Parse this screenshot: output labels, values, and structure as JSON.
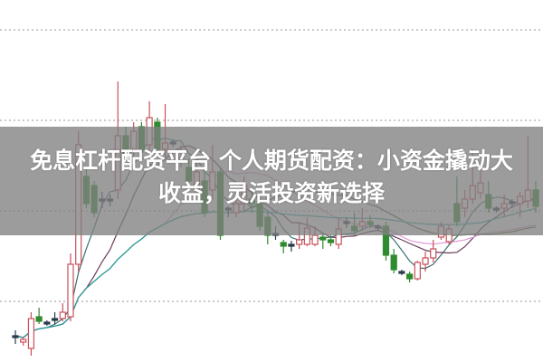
{
  "title": {
    "line1": "免息杠杆配资平台 个人期货配资：小资金撬动大",
    "line2": "收益，灵活投资新选择"
  },
  "colors": {
    "up": "#c8505a",
    "down": "#2e8b2e",
    "doji": "#2a3a4a",
    "grid": "#aaaaaa",
    "banner": "#808080"
  },
  "chart_data": {
    "type": "candlestick",
    "title": "",
    "xlabel": "",
    "ylabel": "",
    "grid": true,
    "ylim": [
      0,
      400
    ],
    "candle_format": [
      "open",
      "close",
      "high",
      "low"
    ],
    "candles": [
      [
        27,
        29,
        35,
        20
      ],
      [
        22,
        25,
        28,
        18
      ],
      [
        15,
        48,
        55,
        7
      ],
      [
        50,
        45,
        60,
        42
      ],
      [
        44,
        43,
        46,
        40
      ],
      [
        46,
        48,
        55,
        42
      ],
      [
        48,
        55,
        65,
        45
      ],
      [
        50,
        108,
        120,
        45
      ],
      [
        108,
        240,
        255,
        100
      ],
      [
        205,
        175,
        215,
        170
      ],
      [
        195,
        165,
        200,
        160
      ],
      [
        178,
        180,
        188,
        170
      ],
      [
        178,
        180,
        185,
        172
      ],
      [
        190,
        250,
        310,
        180
      ],
      [
        250,
        230,
        260,
        225
      ],
      [
        235,
        255,
        265,
        225
      ],
      [
        260,
        235,
        265,
        230
      ],
      [
        240,
        270,
        288,
        232
      ],
      [
        265,
        235,
        270,
        230
      ],
      [
        235,
        242,
        285,
        225
      ],
      [
        243,
        242,
        246,
        238
      ],
      [
        225,
        232,
        240,
        215
      ],
      [
        215,
        200,
        225,
        195
      ],
      [
        190,
        210,
        225,
        185
      ],
      [
        200,
        165,
        210,
        160
      ],
      [
        190,
        210,
        240,
        180
      ],
      [
        210,
        140,
        215,
        135
      ],
      [
        170,
        168,
        172,
        160
      ],
      [
        165,
        175,
        185,
        160
      ],
      [
        175,
        195,
        205,
        165
      ],
      [
        180,
        175,
        190,
        165
      ],
      [
        175,
        150,
        180,
        145
      ],
      [
        160,
        140,
        165,
        130
      ],
      [
        140,
        142,
        150,
        135
      ],
      [
        132,
        128,
        135,
        120
      ],
      [
        130,
        128,
        134,
        122
      ],
      [
        130,
        135,
        155,
        125
      ],
      [
        130,
        148,
        160,
        128
      ],
      [
        130,
        140,
        150,
        128
      ],
      [
        138,
        135,
        142,
        125
      ],
      [
        135,
        132,
        140,
        128
      ],
      [
        130,
        147,
        160,
        125
      ],
      [
        155,
        153,
        160,
        148
      ],
      [
        150,
        145,
        165,
        140
      ],
      [
        150,
        155,
        170,
        145
      ],
      [
        155,
        152,
        162,
        148
      ],
      [
        150,
        148,
        152,
        145
      ],
      [
        150,
        118,
        155,
        112
      ],
      [
        118,
        102,
        125,
        98
      ],
      [
        100,
        98,
        102,
        96
      ],
      [
        97,
        92,
        100,
        88
      ],
      [
        92,
        110,
        112,
        90
      ],
      [
        108,
        115,
        122,
        100
      ],
      [
        115,
        125,
        135,
        110
      ],
      [
        138,
        150,
        155,
        135
      ],
      [
        133,
        147,
        152,
        130
      ],
      [
        175,
        155,
        205,
        150
      ],
      [
        170,
        180,
        190,
        160
      ],
      [
        180,
        195,
        235,
        175
      ],
      [
        187,
        198,
        220,
        180
      ],
      [
        185,
        170,
        200,
        165
      ],
      [
        170,
        168,
        172,
        165
      ],
      [
        170,
        175,
        185,
        160
      ],
      [
        175,
        177,
        180,
        170
      ],
      [
        175,
        183,
        188,
        160
      ],
      [
        178,
        190,
        250,
        170
      ],
      [
        190,
        172,
        200,
        165
      ]
    ],
    "moving_averages": [
      {
        "window": 5,
        "color": "#3c7070"
      },
      {
        "window": 10,
        "color": "#6a3d5a"
      },
      {
        "window": 20,
        "color": "#e39bd6"
      },
      {
        "window": 30,
        "color": "#4d6e3a"
      },
      {
        "window": 60,
        "color": "#2aa3a3"
      }
    ],
    "gridlines": [
      67,
      167,
      267,
      367
    ]
  }
}
